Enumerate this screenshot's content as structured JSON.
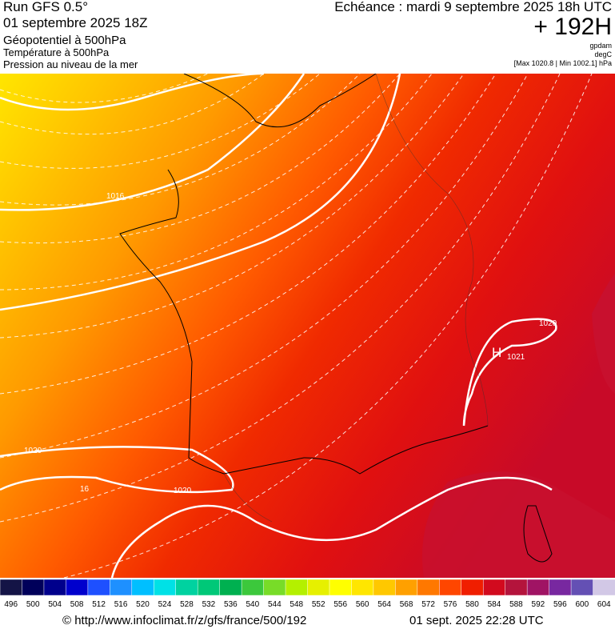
{
  "header": {
    "run": "Run GFS 0.5°",
    "date": "01 septembre 2025 18Z",
    "field1": "Géopotentiel à 500hPa",
    "field2": "Température à 500hPa",
    "field3": "Pression au niveau de la mer",
    "echeance": "Echéance : mardi 9 septembre 2025 18h UTC",
    "lead": "+ 192H",
    "unit1": "gpdam",
    "unit2": "degC",
    "unit3": "[Max 1020.8 | Min 1002.1] hPa"
  },
  "map_labels": [
    "1016",
    "1020",
    "1020",
    "1020",
    "H",
    "1021",
    "16"
  ],
  "colorbar": {
    "ticks": [
      496,
      500,
      504,
      508,
      512,
      516,
      520,
      524,
      528,
      532,
      536,
      540,
      544,
      548,
      552,
      556,
      560,
      564,
      568,
      572,
      576,
      580,
      584,
      588,
      592,
      596,
      600,
      604
    ],
    "colors": [
      "#141446",
      "#00005a",
      "#00008c",
      "#0000cd",
      "#1e50ff",
      "#1e90ff",
      "#00bfff",
      "#00e1e6",
      "#00d2a0",
      "#00c878",
      "#00b050",
      "#3cc83c",
      "#78dc28",
      "#b4f000",
      "#e6f000",
      "#ffff00",
      "#ffe600",
      "#ffc800",
      "#ffa000",
      "#ff7800",
      "#ff4600",
      "#f01e00",
      "#d20a1e",
      "#b4143c",
      "#a01464",
      "#7828a0",
      "#6450b4",
      "#d2c8e6"
    ]
  },
  "footer": {
    "url": "© http://www.infoclimat.fr/z/gfs/france/500/192",
    "date": "01 sept. 2025 22:28 UTC"
  }
}
